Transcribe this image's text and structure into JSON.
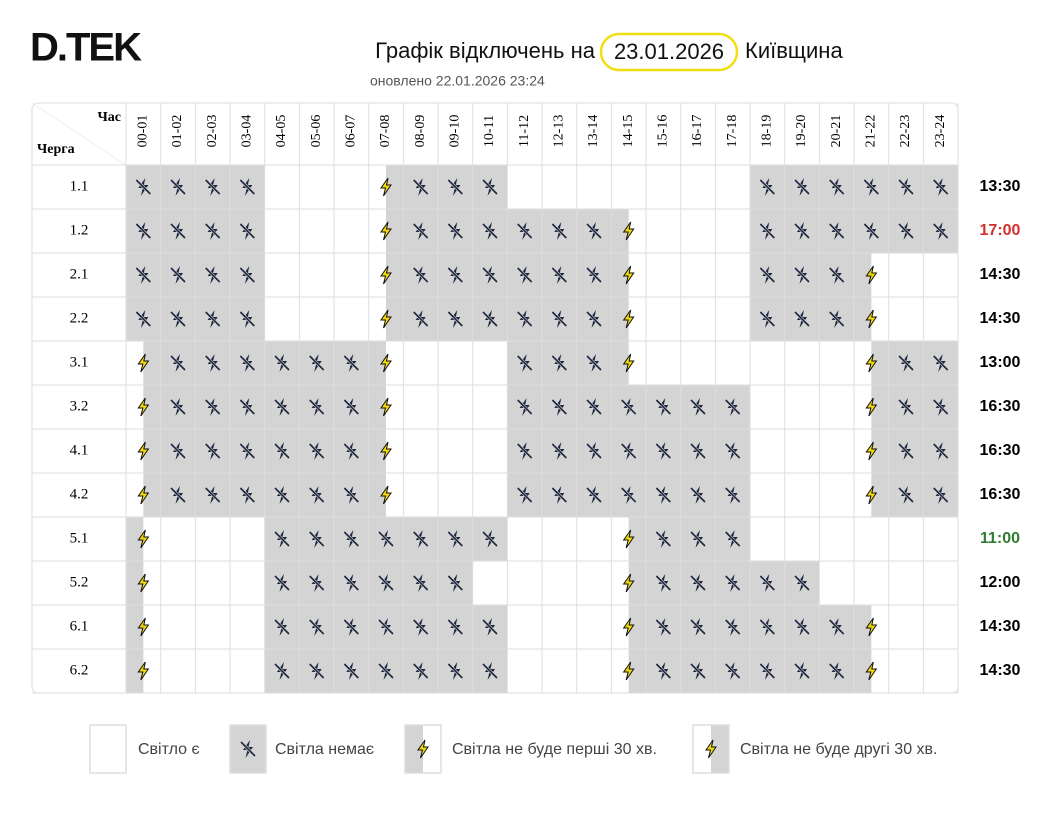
{
  "header": {
    "logo": "D.TEK",
    "title": "Графік відключень на",
    "date": "23.01.2026",
    "region": "Київщина",
    "updated": "оновлено 22.01.2026 23:24"
  },
  "table": {
    "corner_hour": "Час",
    "corner_queue": "Черга",
    "hours": [
      "00-01",
      "01-02",
      "02-03",
      "03-04",
      "04-05",
      "05-06",
      "06-07",
      "07-08",
      "08-09",
      "09-10",
      "10-11",
      "11-12",
      "12-13",
      "13-14",
      "14-15",
      "15-16",
      "16-17",
      "17-18",
      "18-19",
      "19-20",
      "20-21",
      "21-22",
      "22-23",
      "23-24"
    ],
    "rows": [
      {
        "queue": "1.1",
        "total": "13:30",
        "total_color": "#000000",
        "states": [
          "no",
          "no",
          "no",
          "no",
          "yes",
          "yes",
          "yes",
          "second",
          "no",
          "no",
          "no",
          "yes",
          "yes",
          "yes",
          "yes",
          "yes",
          "yes",
          "yes",
          "no",
          "no",
          "no",
          "no",
          "no",
          "no"
        ]
      },
      {
        "queue": "1.2",
        "total": "17:00",
        "total_color": "#d32f2f",
        "states": [
          "no",
          "no",
          "no",
          "no",
          "yes",
          "yes",
          "yes",
          "second",
          "no",
          "no",
          "no",
          "no",
          "no",
          "no",
          "first",
          "yes",
          "yes",
          "yes",
          "no",
          "no",
          "no",
          "no",
          "no",
          "no"
        ]
      },
      {
        "queue": "2.1",
        "total": "14:30",
        "total_color": "#000000",
        "states": [
          "no",
          "no",
          "no",
          "no",
          "yes",
          "yes",
          "yes",
          "second",
          "no",
          "no",
          "no",
          "no",
          "no",
          "no",
          "first",
          "yes",
          "yes",
          "yes",
          "no",
          "no",
          "no",
          "first",
          "yes",
          "yes"
        ]
      },
      {
        "queue": "2.2",
        "total": "14:30",
        "total_color": "#000000",
        "states": [
          "no",
          "no",
          "no",
          "no",
          "yes",
          "yes",
          "yes",
          "second",
          "no",
          "no",
          "no",
          "no",
          "no",
          "no",
          "first",
          "yes",
          "yes",
          "yes",
          "no",
          "no",
          "no",
          "first",
          "yes",
          "yes"
        ]
      },
      {
        "queue": "3.1",
        "total": "13:00",
        "total_color": "#000000",
        "states": [
          "second",
          "no",
          "no",
          "no",
          "no",
          "no",
          "no",
          "first",
          "yes",
          "yes",
          "yes",
          "no",
          "no",
          "no",
          "first",
          "yes",
          "yes",
          "yes",
          "yes",
          "yes",
          "yes",
          "second",
          "no",
          "no"
        ]
      },
      {
        "queue": "3.2",
        "total": "16:30",
        "total_color": "#000000",
        "states": [
          "second",
          "no",
          "no",
          "no",
          "no",
          "no",
          "no",
          "first",
          "yes",
          "yes",
          "yes",
          "no",
          "no",
          "no",
          "no",
          "no",
          "no",
          "no",
          "yes",
          "yes",
          "yes",
          "second",
          "no",
          "no"
        ]
      },
      {
        "queue": "4.1",
        "total": "16:30",
        "total_color": "#000000",
        "states": [
          "second",
          "no",
          "no",
          "no",
          "no",
          "no",
          "no",
          "first",
          "yes",
          "yes",
          "yes",
          "no",
          "no",
          "no",
          "no",
          "no",
          "no",
          "no",
          "yes",
          "yes",
          "yes",
          "second",
          "no",
          "no"
        ]
      },
      {
        "queue": "4.2",
        "total": "16:30",
        "total_color": "#000000",
        "states": [
          "second",
          "no",
          "no",
          "no",
          "no",
          "no",
          "no",
          "first",
          "yes",
          "yes",
          "yes",
          "no",
          "no",
          "no",
          "no",
          "no",
          "no",
          "no",
          "yes",
          "yes",
          "yes",
          "second",
          "no",
          "no"
        ]
      },
      {
        "queue": "5.1",
        "total": "11:00",
        "total_color": "#2e7d32",
        "states": [
          "first",
          "yes",
          "yes",
          "yes",
          "no",
          "no",
          "no",
          "no",
          "no",
          "no",
          "no",
          "yes",
          "yes",
          "yes",
          "second",
          "no",
          "no",
          "no",
          "yes",
          "yes",
          "yes",
          "yes",
          "yes",
          "yes"
        ]
      },
      {
        "queue": "5.2",
        "total": "12:00",
        "total_color": "#000000",
        "states": [
          "first",
          "yes",
          "yes",
          "yes",
          "no",
          "no",
          "no",
          "no",
          "no",
          "no",
          "yes",
          "yes",
          "yes",
          "yes",
          "second",
          "no",
          "no",
          "no",
          "no",
          "no",
          "yes",
          "yes",
          "yes",
          "yes"
        ]
      },
      {
        "queue": "6.1",
        "total": "14:30",
        "total_color": "#000000",
        "states": [
          "first",
          "yes",
          "yes",
          "yes",
          "no",
          "no",
          "no",
          "no",
          "no",
          "no",
          "no",
          "yes",
          "yes",
          "yes",
          "second",
          "no",
          "no",
          "no",
          "no",
          "no",
          "no",
          "first",
          "yes",
          "yes"
        ]
      },
      {
        "queue": "6.2",
        "total": "14:30",
        "total_color": "#000000",
        "states": [
          "first",
          "yes",
          "yes",
          "yes",
          "no",
          "no",
          "no",
          "no",
          "no",
          "no",
          "no",
          "yes",
          "yes",
          "yes",
          "second",
          "no",
          "no",
          "no",
          "no",
          "no",
          "no",
          "first",
          "yes",
          "yes"
        ]
      }
    ]
  },
  "legend": [
    {
      "state": "yes",
      "label": "Світло є"
    },
    {
      "state": "no",
      "label": "Світла немає"
    },
    {
      "state": "first",
      "label": "Світла не буде перші 30 хв."
    },
    {
      "state": "second",
      "label": "Світла не буде другі 30 хв."
    }
  ]
}
